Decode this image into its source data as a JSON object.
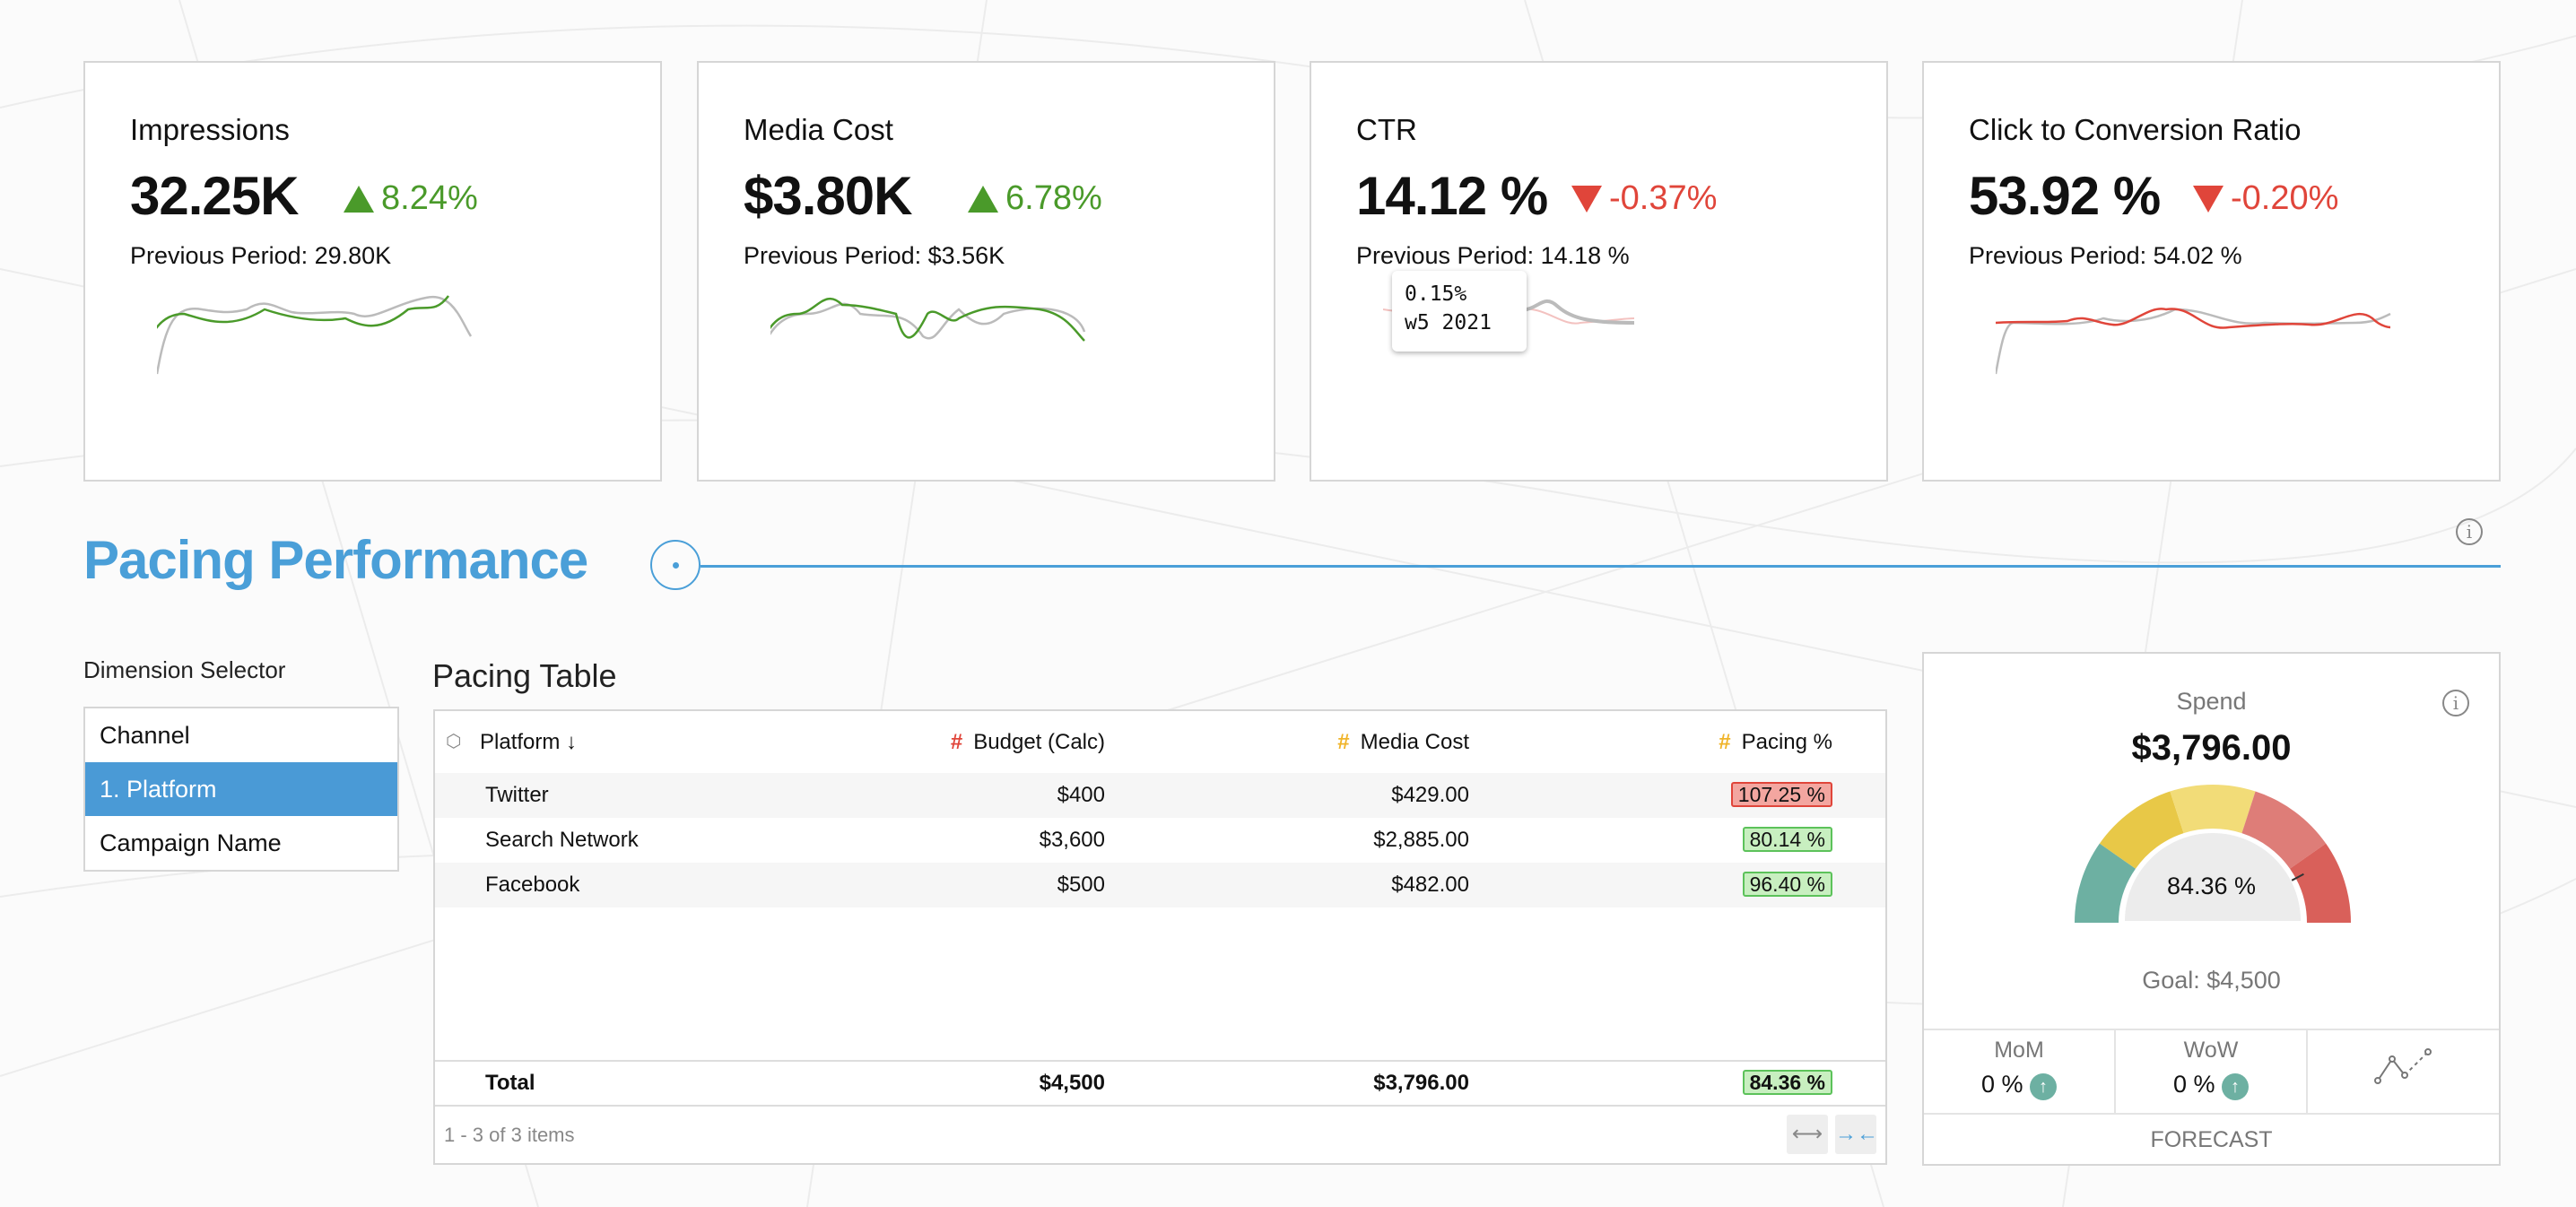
{
  "kpis": [
    {
      "title": "Impressions",
      "value": "32.25K",
      "delta": "8.24%",
      "direction": "up",
      "previous": "Previous Period: 29.80K"
    },
    {
      "title": "Media Cost",
      "value": "$3.80K",
      "delta": "6.78%",
      "direction": "up",
      "previous": "Previous Period: $3.56K"
    },
    {
      "title": "CTR",
      "value": "14.12 %",
      "delta": "-0.37%",
      "direction": "down",
      "previous": "Previous Period: 14.18 %",
      "tooltip": {
        "value": "0.15%",
        "label": "w5 2021"
      }
    },
    {
      "title": "Click to Conversion Ratio",
      "value": "53.92 %",
      "delta": "-0.20%",
      "direction": "down",
      "previous": "Previous Period: 54.02 %"
    }
  ],
  "colors": {
    "up": "#4a9a2a",
    "down": "#e0453a",
    "accent": "#4a9fd8",
    "selected": "#4a9ad6"
  },
  "section": {
    "title": "Pacing Performance",
    "info_icon": "info-icon"
  },
  "dimension_selector": {
    "label": "Dimension Selector",
    "items": [
      "Channel",
      "1. Platform",
      "Campaign Name"
    ],
    "selected": "1. Platform"
  },
  "pacing_table": {
    "title": "Pacing Table",
    "columns": [
      "Platform",
      "Budget (Calc)",
      "Media Cost",
      "Pacing %"
    ],
    "rows": [
      {
        "platform": "Twitter",
        "budget": "$400",
        "media_cost": "$429.00",
        "pacing": "107.25 %",
        "status": "over"
      },
      {
        "platform": "Search Network",
        "budget": "$3,600",
        "media_cost": "$2,885.00",
        "pacing": "80.14 %",
        "status": "ok"
      },
      {
        "platform": "Facebook",
        "budget": "$500",
        "media_cost": "$482.00",
        "pacing": "96.40 %",
        "status": "ok"
      }
    ],
    "total": {
      "label": "Total",
      "budget": "$4,500",
      "media_cost": "$3,796.00",
      "pacing": "84.36 %"
    },
    "footer": "1 - 3 of 3 items"
  },
  "spend": {
    "title": "Spend",
    "value": "$3,796.00",
    "gauge_percent": "84.36 %",
    "gauge_fraction": 0.8436,
    "goal": "Goal: $4,500",
    "mom_label": "MoM",
    "mom_value": "0 %",
    "wow_label": "WoW",
    "wow_value": "0 %",
    "forecast_label": "FORECAST",
    "gauge_colors": [
      "#6db0a2",
      "#e8c847",
      "#f2dc78",
      "#de7d78",
      "#d9605a"
    ]
  }
}
